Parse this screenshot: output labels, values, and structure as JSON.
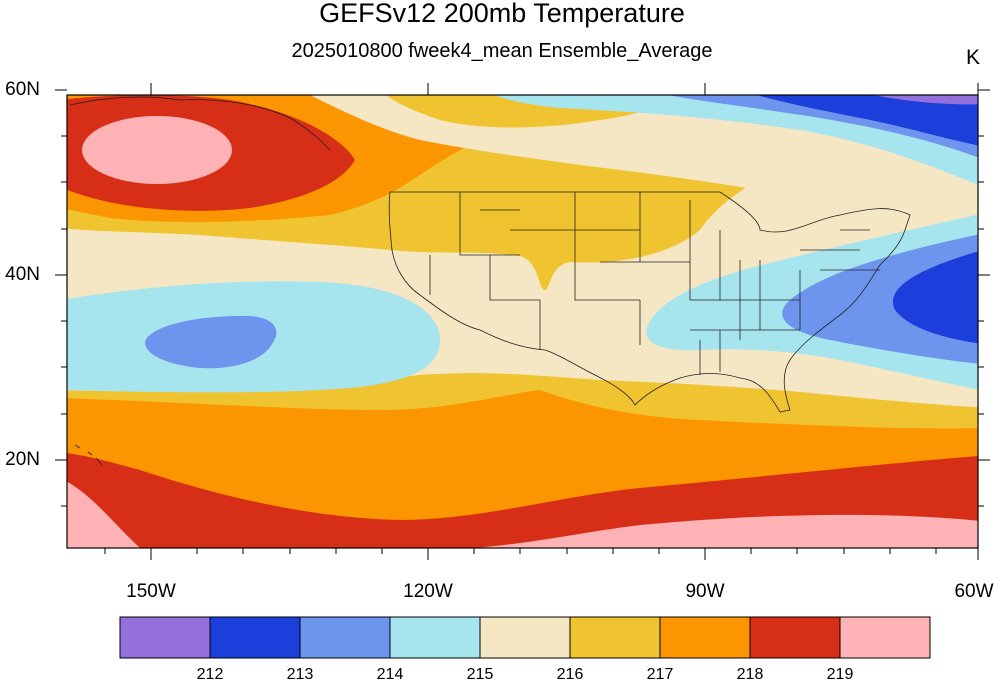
{
  "title": "GEFSv12 200mb Temperature",
  "subtitle": "2025010800 fweek4_mean Ensemble_Average",
  "units": "K",
  "lat_labels": [
    "60N",
    "40N",
    "20N"
  ],
  "lon_labels": [
    "150W",
    "120W",
    "90W",
    "60W"
  ],
  "colorbar": {
    "labels": [
      "212",
      "213",
      "214",
      "215",
      "216",
      "217",
      "218",
      "219"
    ],
    "colors": [
      "#9370DB",
      "#1C3FDB",
      "#6E95EE",
      "#A7E5EE",
      "#F5E6C4",
      "#F0C430",
      "#FB9500",
      "#D72E18",
      "#FDB3B5"
    ]
  },
  "map": {
    "projection": "lat-lon",
    "lon_range": [
      "160W",
      "60W"
    ],
    "lat_range": [
      "10N",
      "60N"
    ],
    "overlay": "US state boundaries and coastlines"
  }
}
